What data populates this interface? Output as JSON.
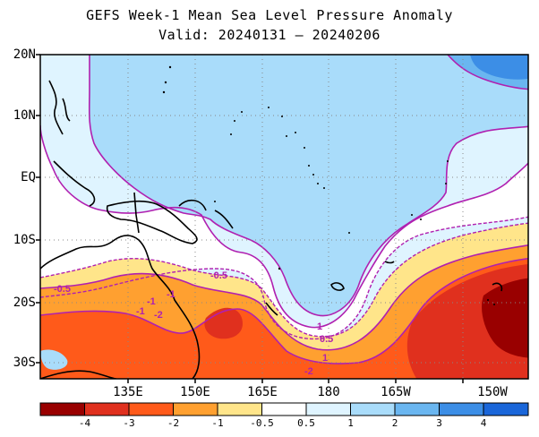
{
  "title": {
    "line1": "GEFS Week-1 Mean Sea Level Pressure Anomaly",
    "line2": "Valid: 20240131 – 20240206"
  },
  "map": {
    "lat_labels": [
      "20N",
      "10N",
      "EQ",
      "10S",
      "20S",
      "30S"
    ],
    "lon_labels": [
      "135E",
      "150E",
      "165E",
      "180",
      "165W",
      "150W"
    ],
    "contour_labels": [
      "-0.5",
      "-0.5",
      "-1",
      "-1",
      "-2",
      "1",
      "0.5",
      "1",
      "-2",
      "-1"
    ]
  },
  "colorbar": {
    "labels": [
      "-4",
      "-3",
      "-2",
      "-1",
      "-0.5",
      "0.5",
      "1",
      "2",
      "3",
      "4"
    ],
    "colors": [
      "#990000",
      "#e0301e",
      "#ff5a1a",
      "#ffa030",
      "#ffe58a",
      "#ffffff",
      "#dff4ff",
      "#a9dcfa",
      "#6ab6f0",
      "#3c8ee6",
      "#1a66d9"
    ]
  }
}
